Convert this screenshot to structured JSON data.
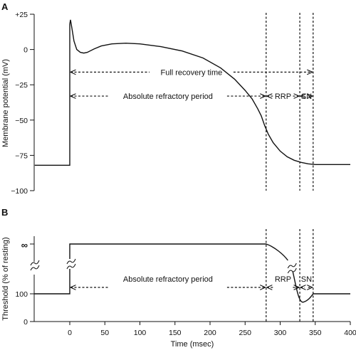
{
  "chart_data": [
    {
      "panel_label": "A",
      "type": "line",
      "ylabel": "Membrane potential (mV)",
      "xlim": [
        -50,
        400
      ],
      "ylim": [
        -100,
        25
      ],
      "yticks": [
        25,
        0,
        -25,
        -50,
        -75,
        -100
      ],
      "ytick_labels": [
        "+25",
        "0",
        "−25",
        "−50",
        "−75",
        "−100"
      ],
      "x": [
        -50,
        0,
        0,
        1,
        3,
        6,
        10,
        15,
        20,
        25,
        35,
        45,
        60,
        80,
        100,
        130,
        160,
        190,
        215,
        235,
        250,
        260,
        268,
        273,
        278,
        283,
        290,
        300,
        310,
        320,
        330,
        340,
        350,
        370,
        400
      ],
      "y": [
        -82,
        -82,
        18,
        21,
        15,
        6,
        0,
        -2,
        -2.5,
        -2,
        0.5,
        2.5,
        4,
        4.5,
        4,
        2,
        -1,
        -6,
        -13,
        -21,
        -29,
        -35,
        -42,
        -47,
        -54,
        -60,
        -66,
        -72,
        -76,
        -78.5,
        -80,
        -81,
        -81.5,
        -81.5,
        -81.5
      ],
      "vlines": [
        {
          "x": 280,
          "style": "dashed"
        },
        {
          "x": 328,
          "style": "dashed"
        },
        {
          "x": 347,
          "style": "dashed"
        }
      ],
      "annotations": [
        {
          "text": "Full recovery time",
          "x_start": 0,
          "x_end": 347,
          "y": -16
        },
        {
          "text": "Absolute refractory period",
          "x_start": 0,
          "x_end": 280,
          "y": -33
        },
        {
          "text": "RRP",
          "x_start": 280,
          "x_end": 328,
          "y": -33
        },
        {
          "text": "SN",
          "x_start": 328,
          "x_end": 347,
          "y": -33
        }
      ]
    },
    {
      "panel_label": "B",
      "type": "line",
      "ylabel": "Threshold (% of resting)",
      "xlabel": "Time (msec)",
      "xlim": [
        -50,
        400
      ],
      "xticks": [
        0,
        50,
        100,
        150,
        200,
        250,
        300,
        350,
        400
      ],
      "xtick_labels": [
        "0",
        "50",
        "100",
        "150",
        "200",
        "250",
        "300",
        "350",
        "400"
      ],
      "ytick_labels": [
        "∞",
        "100",
        "0"
      ],
      "y_axis_break": true,
      "series_description_values": {
        "baseline": 100,
        "infinite_from": 0,
        "infinite_until": 280,
        "returns_to_baseline_at": 347,
        "dip_min": 70
      },
      "vlines": [
        {
          "x": 280,
          "style": "dashed"
        },
        {
          "x": 328,
          "style": "dashed"
        },
        {
          "x": 347,
          "style": "dashed"
        }
      ],
      "annotations": [
        {
          "text": "Absolute refractory period",
          "x_start": 0,
          "x_end": 280
        },
        {
          "text": "RRP",
          "x_start": 280,
          "x_end": 328
        },
        {
          "text": "SN",
          "x_start": 328,
          "x_end": 347
        }
      ]
    }
  ]
}
